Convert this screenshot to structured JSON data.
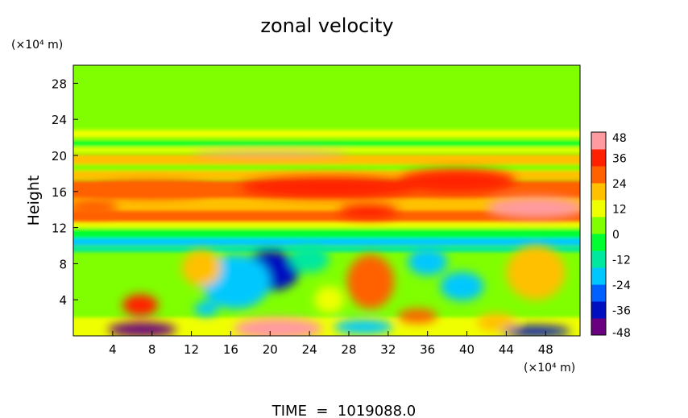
{
  "chart_data": {
    "type": "heatmap",
    "title": "zonal velocity",
    "ylabel": "Height",
    "y_unit": "(×10⁴ m)",
    "x_unit": "(×10⁴ m)",
    "footer": "TIME  =  1019088.0",
    "xlim": [
      0,
      51.5
    ],
    "ylim": [
      0,
      30
    ],
    "x_ticks": [
      4,
      8,
      12,
      16,
      20,
      24,
      28,
      32,
      36,
      40,
      44,
      48
    ],
    "y_ticks": [
      4,
      8,
      12,
      16,
      20,
      24,
      28
    ],
    "colorbar": {
      "min": -48,
      "max": 48,
      "ticks": [
        48,
        36,
        24,
        12,
        0,
        -12,
        -24,
        -36,
        -48
      ],
      "colors": [
        "#6a0080",
        "#0010c0",
        "#0060ff",
        "#00c8ff",
        "#00e8a0",
        "#00ff30",
        "#80ff00",
        "#f0ff00",
        "#ffc000",
        "#ff6000",
        "#ff2000",
        "#ff9aa0"
      ]
    },
    "background_value": 2,
    "bands": [
      {
        "y": 29.0,
        "h": 2.0,
        "v": 3
      },
      {
        "y": 25.0,
        "h": 4.0,
        "v": 4
      },
      {
        "y": 22.4,
        "h": 0.8,
        "v": 8
      },
      {
        "y": 21.3,
        "h": 0.5,
        "v": -6
      },
      {
        "y": 20.6,
        "h": 0.5,
        "v": 14
      },
      {
        "y": 19.5,
        "h": 1.2,
        "v": 20
      },
      {
        "y": 18.6,
        "h": 0.8,
        "v": 4
      },
      {
        "y": 17.8,
        "h": 1.0,
        "v": 18
      },
      {
        "y": 16.2,
        "h": 2.0,
        "v": 26
      },
      {
        "y": 14.5,
        "h": 1.5,
        "v": 20
      },
      {
        "y": 13.2,
        "h": 1.4,
        "v": 30
      },
      {
        "y": 12.3,
        "h": 0.6,
        "v": 10
      },
      {
        "y": 11.3,
        "h": 1.0,
        "v": -8
      },
      {
        "y": 10.4,
        "h": 0.8,
        "v": -18
      },
      {
        "y": 9.6,
        "h": 0.6,
        "v": -10
      },
      {
        "y": 4.0,
        "h": 6.0,
        "v": 6
      },
      {
        "y": 0.5,
        "h": 3.0,
        "v": 8
      }
    ],
    "blobs": [
      {
        "x": 20.0,
        "y": 20.2,
        "rx": 8.0,
        "ry": 0.35,
        "v": 40
      },
      {
        "x": 26.0,
        "y": 16.5,
        "rx": 9.0,
        "ry": 1.2,
        "v": 34
      },
      {
        "x": 39.0,
        "y": 17.2,
        "rx": 6.0,
        "ry": 1.3,
        "v": 34
      },
      {
        "x": 47.0,
        "y": 14.2,
        "rx": 5.0,
        "ry": 1.2,
        "v": 40
      },
      {
        "x": 8.0,
        "y": 16.2,
        "rx": 6.0,
        "ry": 1.0,
        "v": 24
      },
      {
        "x": 30.0,
        "y": 13.8,
        "rx": 3.0,
        "ry": 0.8,
        "v": 32
      },
      {
        "x": 2.0,
        "y": 14.2,
        "rx": 2.5,
        "ry": 1.0,
        "v": 28
      },
      {
        "x": 20.0,
        "y": 7.2,
        "rx": 3.0,
        "ry": 2.2,
        "v": -40
      },
      {
        "x": 16.5,
        "y": 6.0,
        "rx": 3.5,
        "ry": 3.0,
        "v": -20
      },
      {
        "x": 24.0,
        "y": 8.5,
        "rx": 2.0,
        "ry": 1.5,
        "v": -14
      },
      {
        "x": 30.2,
        "y": 6.0,
        "rx": 2.4,
        "ry": 3.0,
        "v": 30
      },
      {
        "x": 36.0,
        "y": 8.2,
        "rx": 2.0,
        "ry": 1.5,
        "v": -22
      },
      {
        "x": 39.5,
        "y": 5.5,
        "rx": 2.2,
        "ry": 1.6,
        "v": -22
      },
      {
        "x": 47.0,
        "y": 7.0,
        "rx": 3.0,
        "ry": 3.0,
        "v": 22
      },
      {
        "x": 13.0,
        "y": 7.5,
        "rx": 2.0,
        "ry": 2.0,
        "v": 16
      },
      {
        "x": 6.8,
        "y": 3.4,
        "rx": 1.8,
        "ry": 1.2,
        "v": 38
      },
      {
        "x": 7.0,
        "y": 0.7,
        "rx": 3.5,
        "ry": 0.8,
        "v": -42
      },
      {
        "x": 20.8,
        "y": 0.8,
        "rx": 4.5,
        "ry": 1.2,
        "v": 42
      },
      {
        "x": 29.5,
        "y": 1.0,
        "rx": 3.0,
        "ry": 0.8,
        "v": -22
      },
      {
        "x": 35.0,
        "y": 2.2,
        "rx": 2.0,
        "ry": 0.8,
        "v": 30
      },
      {
        "x": 47.0,
        "y": 0.5,
        "rx": 3.5,
        "ry": 0.6,
        "v": -38
      },
      {
        "x": 43.0,
        "y": 1.5,
        "rx": 2.0,
        "ry": 1.0,
        "v": 16
      },
      {
        "x": 13.5,
        "y": 3.0,
        "rx": 1.2,
        "ry": 0.8,
        "v": -20
      },
      {
        "x": 26.0,
        "y": 4.0,
        "rx": 1.5,
        "ry": 1.5,
        "v": 10
      }
    ]
  }
}
